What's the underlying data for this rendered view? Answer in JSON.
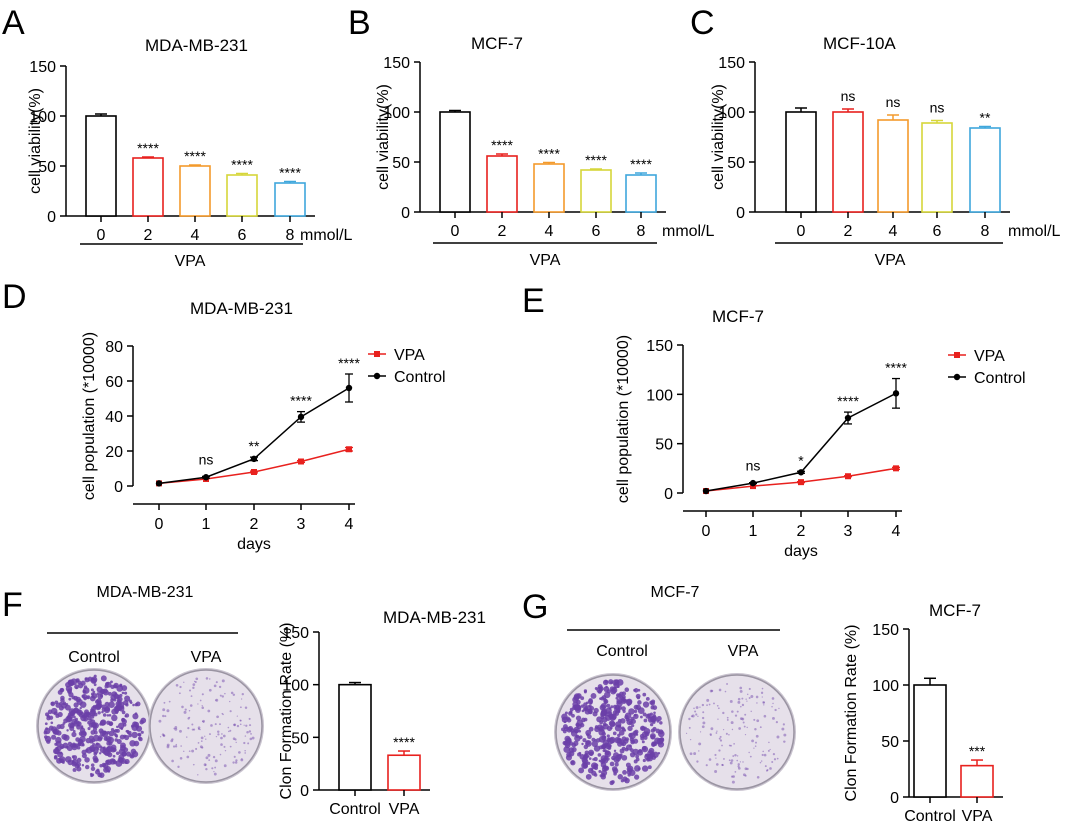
{
  "panel_letters": [
    "A",
    "B",
    "C",
    "D",
    "E",
    "F",
    "G"
  ],
  "colors": {
    "dose_0": "#000000",
    "dose_2": "#e8211e",
    "dose_4": "#f39a2c",
    "dose_6": "#d6d63a",
    "dose_8": "#3fa7dc",
    "vpa_line": "#e8211e",
    "control_line": "#000000",
    "crystal_violet": "#6b3fa8",
    "dish_bg": "#e6e0ea"
  },
  "dishes": {
    "F": {
      "title": "MDA-MB-231",
      "labels": [
        "Control",
        "VPA"
      ]
    },
    "G": {
      "title": "MCF-7",
      "labels": [
        "Control",
        "VPA"
      ]
    }
  },
  "chart_data": [
    {
      "id": "A",
      "type": "bar",
      "title": "MDA-MB-231",
      "categories": [
        "0",
        "2",
        "4",
        "6",
        "8"
      ],
      "values": [
        100,
        58,
        50,
        41,
        33
      ],
      "errors": [
        2,
        1,
        1,
        1.5,
        1.5
      ],
      "significance": [
        "",
        "****",
        "****",
        "****",
        "****"
      ],
      "ylabel": "cell viability(%)",
      "unit": "mmol/L",
      "group_label": "VPA",
      "ylim": [
        0,
        150
      ],
      "yticks": [
        0,
        50,
        100,
        150
      ]
    },
    {
      "id": "B",
      "type": "bar",
      "title": "MCF-7",
      "categories": [
        "0",
        "2",
        "4",
        "6",
        "8"
      ],
      "values": [
        100,
        56,
        48,
        42,
        37
      ],
      "errors": [
        1.5,
        2,
        1.5,
        1,
        2
      ],
      "significance": [
        "",
        "****",
        "****",
        "****",
        "****"
      ],
      "ylabel": "cell viability(%)",
      "unit": "mmol/L",
      "group_label": "VPA",
      "ylim": [
        0,
        150
      ],
      "yticks": [
        0,
        50,
        100,
        150
      ]
    },
    {
      "id": "C",
      "type": "bar",
      "title": "MCF-10A",
      "categories": [
        "0",
        "2",
        "4",
        "6",
        "8"
      ],
      "values": [
        100,
        100,
        92,
        89,
        84
      ],
      "errors": [
        4,
        3,
        5,
        2.5,
        1.5
      ],
      "significance": [
        "",
        "ns",
        "ns",
        "ns",
        "**"
      ],
      "ylabel": "cell viability(%)",
      "unit": "mmol/L",
      "group_label": "VPA",
      "ylim": [
        0,
        150
      ],
      "yticks": [
        0,
        50,
        100,
        150
      ]
    },
    {
      "id": "D",
      "type": "line",
      "title": "MDA-MB-231",
      "x": [
        0,
        1,
        2,
        3,
        4
      ],
      "series": [
        {
          "name": "VPA",
          "values": [
            1.5,
            4,
            8,
            14,
            21
          ],
          "errors": [
            0,
            0,
            0.5,
            0.5,
            1
          ]
        },
        {
          "name": "Control",
          "values": [
            1.5,
            5,
            15.5,
            39.5,
            56
          ],
          "errors": [
            0,
            0.5,
            1,
            3,
            8
          ]
        }
      ],
      "significance": [
        "",
        "ns",
        "**",
        "****",
        "****"
      ],
      "xlabel": "days",
      "ylabel": "cell population (*10000)",
      "ylim": [
        0,
        80
      ],
      "yticks": [
        0,
        20,
        40,
        60,
        80
      ]
    },
    {
      "id": "E",
      "type": "line",
      "title": "MCF-7",
      "x": [
        0,
        1,
        2,
        3,
        4
      ],
      "series": [
        {
          "name": "VPA",
          "values": [
            2,
            7,
            11,
            17,
            25
          ],
          "errors": [
            0,
            0,
            0.5,
            0.5,
            1
          ]
        },
        {
          "name": "Control",
          "values": [
            2,
            10,
            21,
            76,
            101
          ],
          "errors": [
            0,
            0.5,
            1,
            6,
            15
          ]
        }
      ],
      "significance": [
        "",
        "ns",
        "*",
        "****",
        "****"
      ],
      "xlabel": "days",
      "ylabel": "cell population (*10000)",
      "ylim": [
        0,
        150
      ],
      "yticks": [
        0,
        50,
        100,
        150
      ]
    },
    {
      "id": "F",
      "type": "bar",
      "title": "MDA-MB-231",
      "categories": [
        "Control",
        "VPA"
      ],
      "values": [
        100,
        33
      ],
      "errors": [
        2,
        4
      ],
      "significance": [
        "",
        "****"
      ],
      "ylabel": "Clon Formation Rate (%)",
      "ylim": [
        0,
        150
      ],
      "yticks": [
        0,
        50,
        100,
        150
      ]
    },
    {
      "id": "G",
      "type": "bar",
      "title": "MCF-7",
      "categories": [
        "Control",
        "VPA"
      ],
      "values": [
        100,
        28
      ],
      "errors": [
        6,
        5
      ],
      "significance": [
        "",
        "***"
      ],
      "ylabel": "Clon Formation Rate (%)",
      "ylim": [
        0,
        150
      ],
      "yticks": [
        0,
        50,
        100,
        150
      ]
    }
  ]
}
